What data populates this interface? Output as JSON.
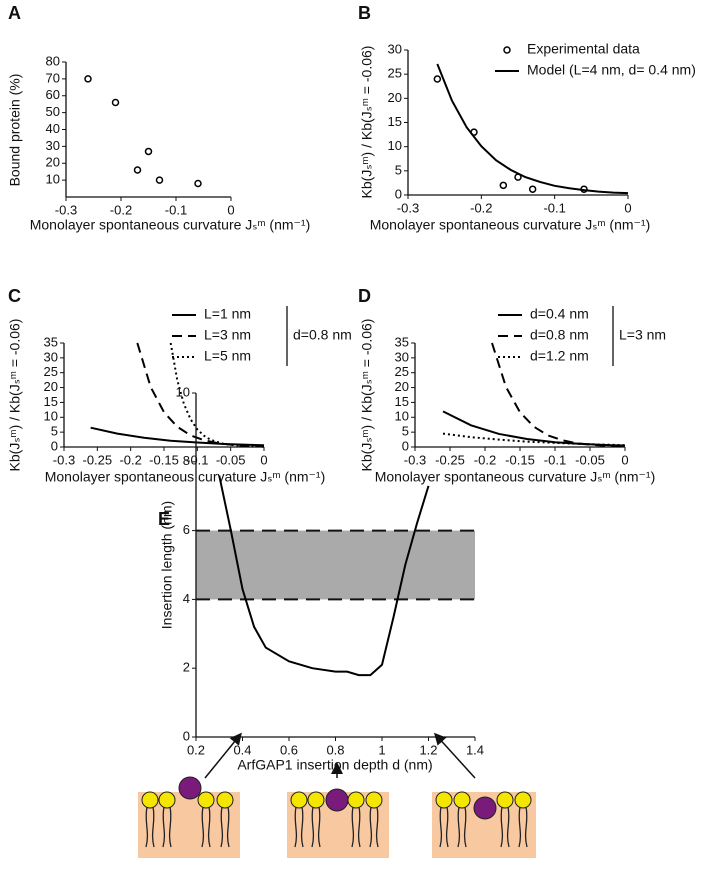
{
  "chart_data": [
    {
      "type": "scatter",
      "panel_label": "A",
      "x_label": "Monolayer spontaneous curvature Jₛᵐ (nm⁻¹)",
      "y_label": "Bound protein (%)",
      "xlim": [
        -0.3,
        0
      ],
      "xticks": [
        -0.3,
        -0.2,
        -0.1,
        0
      ],
      "ylim": [
        0,
        80
      ],
      "yticks": [
        10,
        20,
        30,
        40,
        50,
        60,
        70,
        80
      ],
      "series": [
        {
          "color": "#000000",
          "x": [
            -0.26,
            -0.21,
            -0.17,
            -0.15,
            -0.13,
            -0.06
          ],
          "values": [
            70,
            56,
            16,
            27,
            10,
            8
          ]
        }
      ]
    },
    {
      "type": "scatter",
      "panel_label": "B",
      "x_label": "Monolayer spontaneous curvature Jₛᵐ (nm⁻¹)",
      "y_label": "Kb(Jₛᵐ) / Kb(Jₛᵐ = -0.06)",
      "xlim": [
        -0.3,
        0
      ],
      "xticks": [
        -0.3,
        -0.2,
        -0.1,
        0
      ],
      "ylim": [
        0,
        30
      ],
      "yticks": [
        0,
        5,
        10,
        15,
        20,
        25,
        30
      ],
      "series": [
        {
          "name": "Experimental data",
          "type": "scatter",
          "color": "#000000",
          "x": [
            -0.26,
            -0.21,
            -0.17,
            -0.15,
            -0.13,
            -0.06
          ],
          "values": [
            24,
            13,
            2,
            3.7,
            1.2,
            1.2
          ]
        },
        {
          "name": "Model (L=4 nm, d= 0.4 nm)",
          "type": "line",
          "dash": "solid",
          "color": "#000000",
          "x": [
            -0.26,
            -0.24,
            -0.22,
            -0.2,
            -0.18,
            -0.16,
            -0.14,
            -0.12,
            -0.1,
            -0.08,
            -0.06,
            -0.04,
            -0.02,
            0
          ],
          "values": [
            27.1,
            19.5,
            14,
            10.1,
            7.2,
            5.2,
            3.7,
            2.7,
            1.9,
            1.4,
            1,
            0.7,
            0.5,
            0.4
          ]
        }
      ]
    },
    {
      "type": "line",
      "panel_label": "C",
      "x_label": "Monolayer spontaneous curvature Jₛᵐ (nm⁻¹)",
      "y_label": "Kb(Jₛᵐ) / Kb(Jₛᵐ = -0.06)",
      "legend_note": "d=0.8 nm",
      "xlim": [
        -0.3,
        0
      ],
      "xticks": [
        -0.3,
        -0.25,
        -0.2,
        -0.15,
        -0.1,
        -0.05,
        0
      ],
      "ylim": [
        0,
        35
      ],
      "yticks": [
        0,
        5,
        10,
        15,
        20,
        25,
        30,
        35
      ],
      "series": [
        {
          "name": "L=1 nm",
          "dash": "solid",
          "color": "#000000",
          "x": [
            -0.26,
            -0.22,
            -0.18,
            -0.14,
            -0.1,
            -0.06,
            -0.02,
            0
          ],
          "values": [
            6.5,
            4.5,
            3.1,
            2.1,
            1.5,
            1,
            0.7,
            0.6
          ]
        },
        {
          "name": "L=3 nm",
          "dash": "dashed",
          "color": "#000000",
          "x": [
            -0.19,
            -0.17,
            -0.15,
            -0.13,
            -0.11,
            -0.09,
            -0.07,
            -0.05,
            -0.03,
            0
          ],
          "values": [
            35,
            20.2,
            11.7,
            6.8,
            3.9,
            2.3,
            1.3,
            0.8,
            0.4,
            0.2
          ]
        },
        {
          "name": "L=5 nm",
          "dash": "dotted",
          "color": "#000000",
          "x": [
            -0.14,
            -0.13,
            -0.12,
            -0.11,
            -0.1,
            -0.09,
            -0.08,
            -0.06,
            -0.03,
            0
          ],
          "values": [
            35,
            22.4,
            14.4,
            9.3,
            5.9,
            3.8,
            2.4,
            1,
            0.3,
            0.1
          ]
        }
      ]
    },
    {
      "type": "line",
      "panel_label": "D",
      "x_label": "Monolayer spontaneous curvature Jₛᵐ (nm⁻¹)",
      "y_label": "Kb(Jₛᵐ) / Kb(Jₛᵐ = -0.06)",
      "legend_note": "L=3 nm",
      "xlim": [
        -0.3,
        0
      ],
      "xticks": [
        -0.3,
        -0.25,
        -0.2,
        -0.15,
        -0.1,
        -0.05,
        0
      ],
      "ylim": [
        0,
        35
      ],
      "yticks": [
        0,
        5,
        10,
        15,
        20,
        25,
        30,
        35
      ],
      "series": [
        {
          "name": "d=0.4 nm",
          "dash": "solid",
          "color": "#000000",
          "x": [
            -0.26,
            -0.22,
            -0.18,
            -0.14,
            -0.1,
            -0.06,
            -0.02,
            0
          ],
          "values": [
            12,
            7.3,
            4.4,
            2.7,
            1.6,
            1,
            0.6,
            0.5
          ]
        },
        {
          "name": "d=0.8 nm",
          "dash": "dashed",
          "color": "#000000",
          "x": [
            -0.19,
            -0.17,
            -0.15,
            -0.13,
            -0.11,
            -0.09,
            -0.07,
            -0.05,
            -0.03,
            0
          ],
          "values": [
            35,
            20.2,
            11.7,
            6.8,
            3.9,
            2.3,
            1.3,
            0.8,
            0.4,
            0.2
          ]
        },
        {
          "name": "d=1.2 nm",
          "dash": "dotted",
          "color": "#000000",
          "x": [
            -0.26,
            -0.22,
            -0.18,
            -0.14,
            -0.1,
            -0.06,
            0
          ],
          "values": [
            4.5,
            3.3,
            2.5,
            1.8,
            1.4,
            1,
            0.6
          ]
        }
      ]
    },
    {
      "type": "line",
      "panel_label": "E",
      "x_label": "ArfGAP1 insertion depth d (nm)",
      "y_label": "Insertion length (nm)",
      "xlim": [
        0.2,
        1.4
      ],
      "xticks": [
        0.2,
        0.4,
        0.6,
        0.8,
        1,
        1.2,
        1.4
      ],
      "ylim": [
        0,
        10
      ],
      "yticks": [
        0,
        2,
        4,
        6,
        8,
        10
      ],
      "band": [
        4,
        6
      ],
      "band_color": "#aaaaaa",
      "series": [
        {
          "dash": "solid",
          "color": "#000000",
          "x": [
            0.3,
            0.35,
            0.4,
            0.45,
            0.5,
            0.6,
            0.7,
            0.8,
            0.85,
            0.9,
            0.95,
            1,
            1.05,
            1.1,
            1.15,
            1.2
          ],
          "values": [
            7.6,
            6,
            4.3,
            3.2,
            2.6,
            2.2,
            2,
            1.9,
            1.9,
            1.8,
            1.8,
            2.1,
            3.5,
            5,
            6.2,
            7.3
          ]
        }
      ]
    }
  ]
}
